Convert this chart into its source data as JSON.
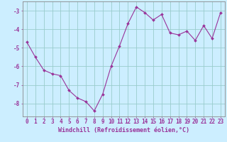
{
  "x": [
    0,
    1,
    2,
    3,
    4,
    5,
    6,
    7,
    8,
    9,
    10,
    11,
    12,
    13,
    14,
    15,
    16,
    17,
    18,
    19,
    20,
    21,
    22,
    23
  ],
  "y": [
    -4.7,
    -5.5,
    -6.2,
    -6.4,
    -6.5,
    -7.3,
    -7.7,
    -7.9,
    -8.4,
    -7.5,
    -6.0,
    -4.9,
    -3.7,
    -2.8,
    -3.1,
    -3.5,
    -3.2,
    -4.2,
    -4.3,
    -4.1,
    -4.6,
    -3.8,
    -4.5,
    -3.1
  ],
  "line_color": "#993399",
  "marker": "D",
  "marker_size": 2,
  "bg_color": "#cceeff",
  "grid_color": "#99cccc",
  "xlabel": "Windchill (Refroidissement éolien,°C)",
  "xlabel_fontsize": 6,
  "tick_fontsize": 5.5,
  "ylim": [
    -8.7,
    -2.5
  ],
  "yticks": [
    -8,
    -7,
    -6,
    -5,
    -4,
    -3
  ],
  "axis_color": "#888888",
  "title_color": "#993399",
  "line_width": 0.8
}
